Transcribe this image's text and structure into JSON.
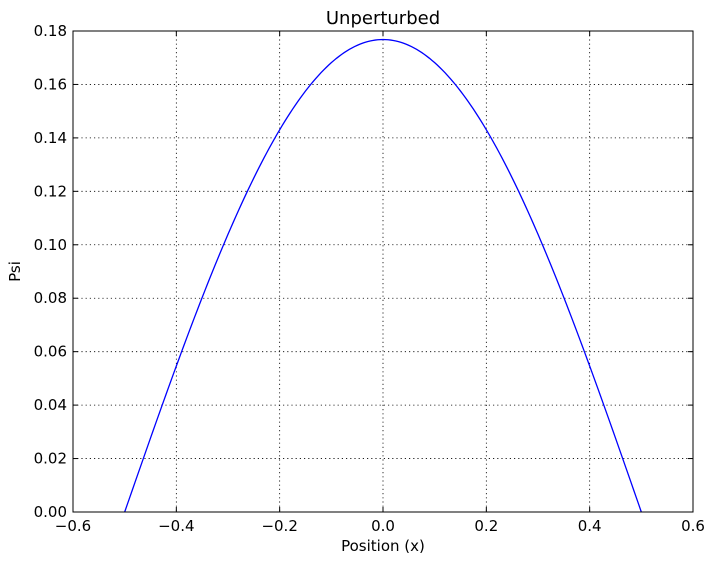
{
  "chart_data": {
    "type": "line",
    "title": "Unperturbed",
    "xlabel": "Position (x)",
    "ylabel": "Psi",
    "xlim": [
      -0.6,
      0.6
    ],
    "ylim": [
      0.0,
      0.18
    ],
    "grid": true,
    "xticks": [
      "−0.6",
      "−0.4",
      "−0.2",
      "0.0",
      "0.2",
      "0.4",
      "0.6"
    ],
    "yticks": [
      "0.00",
      "0.02",
      "0.04",
      "0.06",
      "0.08",
      "0.10",
      "0.12",
      "0.14",
      "0.16",
      "0.18"
    ],
    "series": [
      {
        "color": "#0000ff",
        "x": [
          -0.5,
          -0.45,
          -0.4,
          -0.35,
          -0.3,
          -0.25,
          -0.2,
          -0.15,
          -0.1,
          -0.05,
          0.0,
          0.05,
          0.1,
          0.15,
          0.2,
          0.25,
          0.3,
          0.35,
          0.4,
          0.45,
          0.5
        ],
        "y": [
          0.0,
          0.0277,
          0.0547,
          0.0803,
          0.104,
          0.125,
          0.143,
          0.1575,
          0.1681,
          0.1746,
          0.1768,
          0.1746,
          0.1681,
          0.1575,
          0.143,
          0.125,
          0.104,
          0.0803,
          0.0547,
          0.0277,
          0.0
        ]
      }
    ]
  }
}
